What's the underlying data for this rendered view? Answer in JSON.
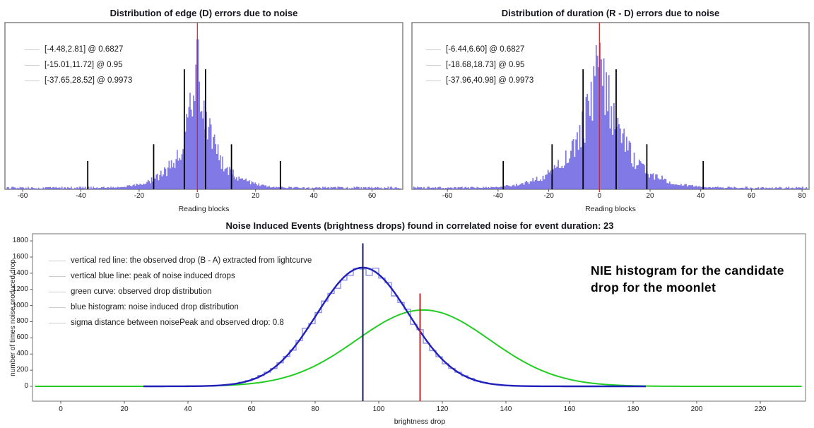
{
  "page": {
    "background": "#ffffff"
  },
  "colors": {
    "histogram_fill": "#6f68e2",
    "red_line": "#cc2222",
    "black_line": "#000000",
    "navy_line": "#1b1b66",
    "blue_curve": "#2020bb",
    "histogram_step": "#8f8fe6",
    "green_curve": "#22cc22",
    "frame": "#8a8a8a",
    "tick_mark": "#555555",
    "legend_sample": "#cccccc"
  },
  "chart_data": [
    {
      "id": "edge_errors",
      "type": "bar",
      "title": "Distribution of edge (D) errors due to noise",
      "xlabel": "Reading blocks",
      "x_ticks": [
        -60,
        -40,
        -20,
        0,
        20,
        40,
        60
      ],
      "x_range": [
        -66,
        70.5
      ],
      "red_line_x": 0,
      "legend": [
        {
          "label": "[-4.48,2.81] @ 0.6827",
          "interval": [
            -4.48,
            2.81
          ],
          "coverage": 0.6827,
          "bound_line_height_fraction": 0.72
        },
        {
          "label": "[-15.01,11.72] @ 0.95",
          "interval": [
            -15.01,
            11.72
          ],
          "coverage": 0.95,
          "bound_line_height_fraction": 0.27
        },
        {
          "label": "[-37.65,28.52] @ 0.9973",
          "interval": [
            -37.65,
            28.52
          ],
          "coverage": 0.9973,
          "bound_line_height_fraction": 0.17
        }
      ],
      "distribution": {
        "shape": "exp_power",
        "center": 0,
        "peak_fraction": 0.9,
        "scale": 4.5,
        "exponent": 0.8,
        "bin_width": 0.4,
        "seed": 3.1
      }
    },
    {
      "id": "duration_errors",
      "type": "bar",
      "title": "Distribution of duration (R - D) errors due to noise",
      "xlabel": "Reading blocks",
      "x_ticks": [
        -60,
        -40,
        -20,
        0,
        20,
        40,
        60,
        80
      ],
      "x_range": [
        -74,
        83
      ],
      "red_line_x": 0,
      "legend": [
        {
          "label": "[-6.44,6.60] @ 0.6827",
          "interval": [
            -6.44,
            6.6
          ],
          "coverage": 0.6827,
          "bound_line_height_fraction": 0.72
        },
        {
          "label": "[-18.68,18.73] @ 0.95",
          "interval": [
            -18.68,
            18.73
          ],
          "coverage": 0.95,
          "bound_line_height_fraction": 0.27
        },
        {
          "label": "[-37.96,40.98] @ 0.9973",
          "interval": [
            -37.96,
            40.98
          ],
          "coverage": 0.9973,
          "bound_line_height_fraction": 0.17
        }
      ],
      "distribution": {
        "shape": "exp_power",
        "center": 0,
        "peak_fraction": 0.88,
        "scale": 8.5,
        "exponent": 0.9,
        "bin_width": 0.5,
        "seed": 7.7
      }
    },
    {
      "id": "nie",
      "type": "bar",
      "title": "Noise Induced Events (brightness drops) found in correlated noise for event duration: 23",
      "xlabel": "brightness drop",
      "ylabel": "number of times noise produced drop",
      "x_ticks": [
        0,
        20,
        40,
        60,
        80,
        100,
        120,
        140,
        160,
        180,
        200,
        220
      ],
      "y_ticks": [
        0,
        200,
        400,
        600,
        800,
        1000,
        1200,
        1400,
        1600,
        1800
      ],
      "x_range": [
        -8,
        234
      ],
      "y_range": [
        0,
        1880
      ],
      "legend": [
        {
          "label": "vertical red line: the observed drop (B - A) extracted from lightcurve"
        },
        {
          "label": "vertical blue line: peak of noise induced drops"
        },
        {
          "label": "green curve: observed drop distribution"
        },
        {
          "label": "blue histogram: noise induced drop distribution"
        },
        {
          "label": "sigma distance between noisePeak and observed drop: 0.8"
        }
      ],
      "red_line": {
        "x": 113,
        "top": 1150
      },
      "blue_line": {
        "x": 95,
        "top": 1770
      },
      "blue_curve": {
        "type": "gaussian",
        "mean": 95,
        "sigma": 14.5,
        "peak": 1470
      },
      "green_curve": {
        "type": "gaussian",
        "mean": 114,
        "sigma": 21,
        "peak": 945
      },
      "histogram": {
        "bin_width": 2,
        "range": [
          36,
          164
        ],
        "follows": "blue_curve",
        "seed": 11.3
      },
      "sigma_distance": 0.8,
      "annotation": "NIE histogram for the candidate drop for the moonlet"
    }
  ]
}
